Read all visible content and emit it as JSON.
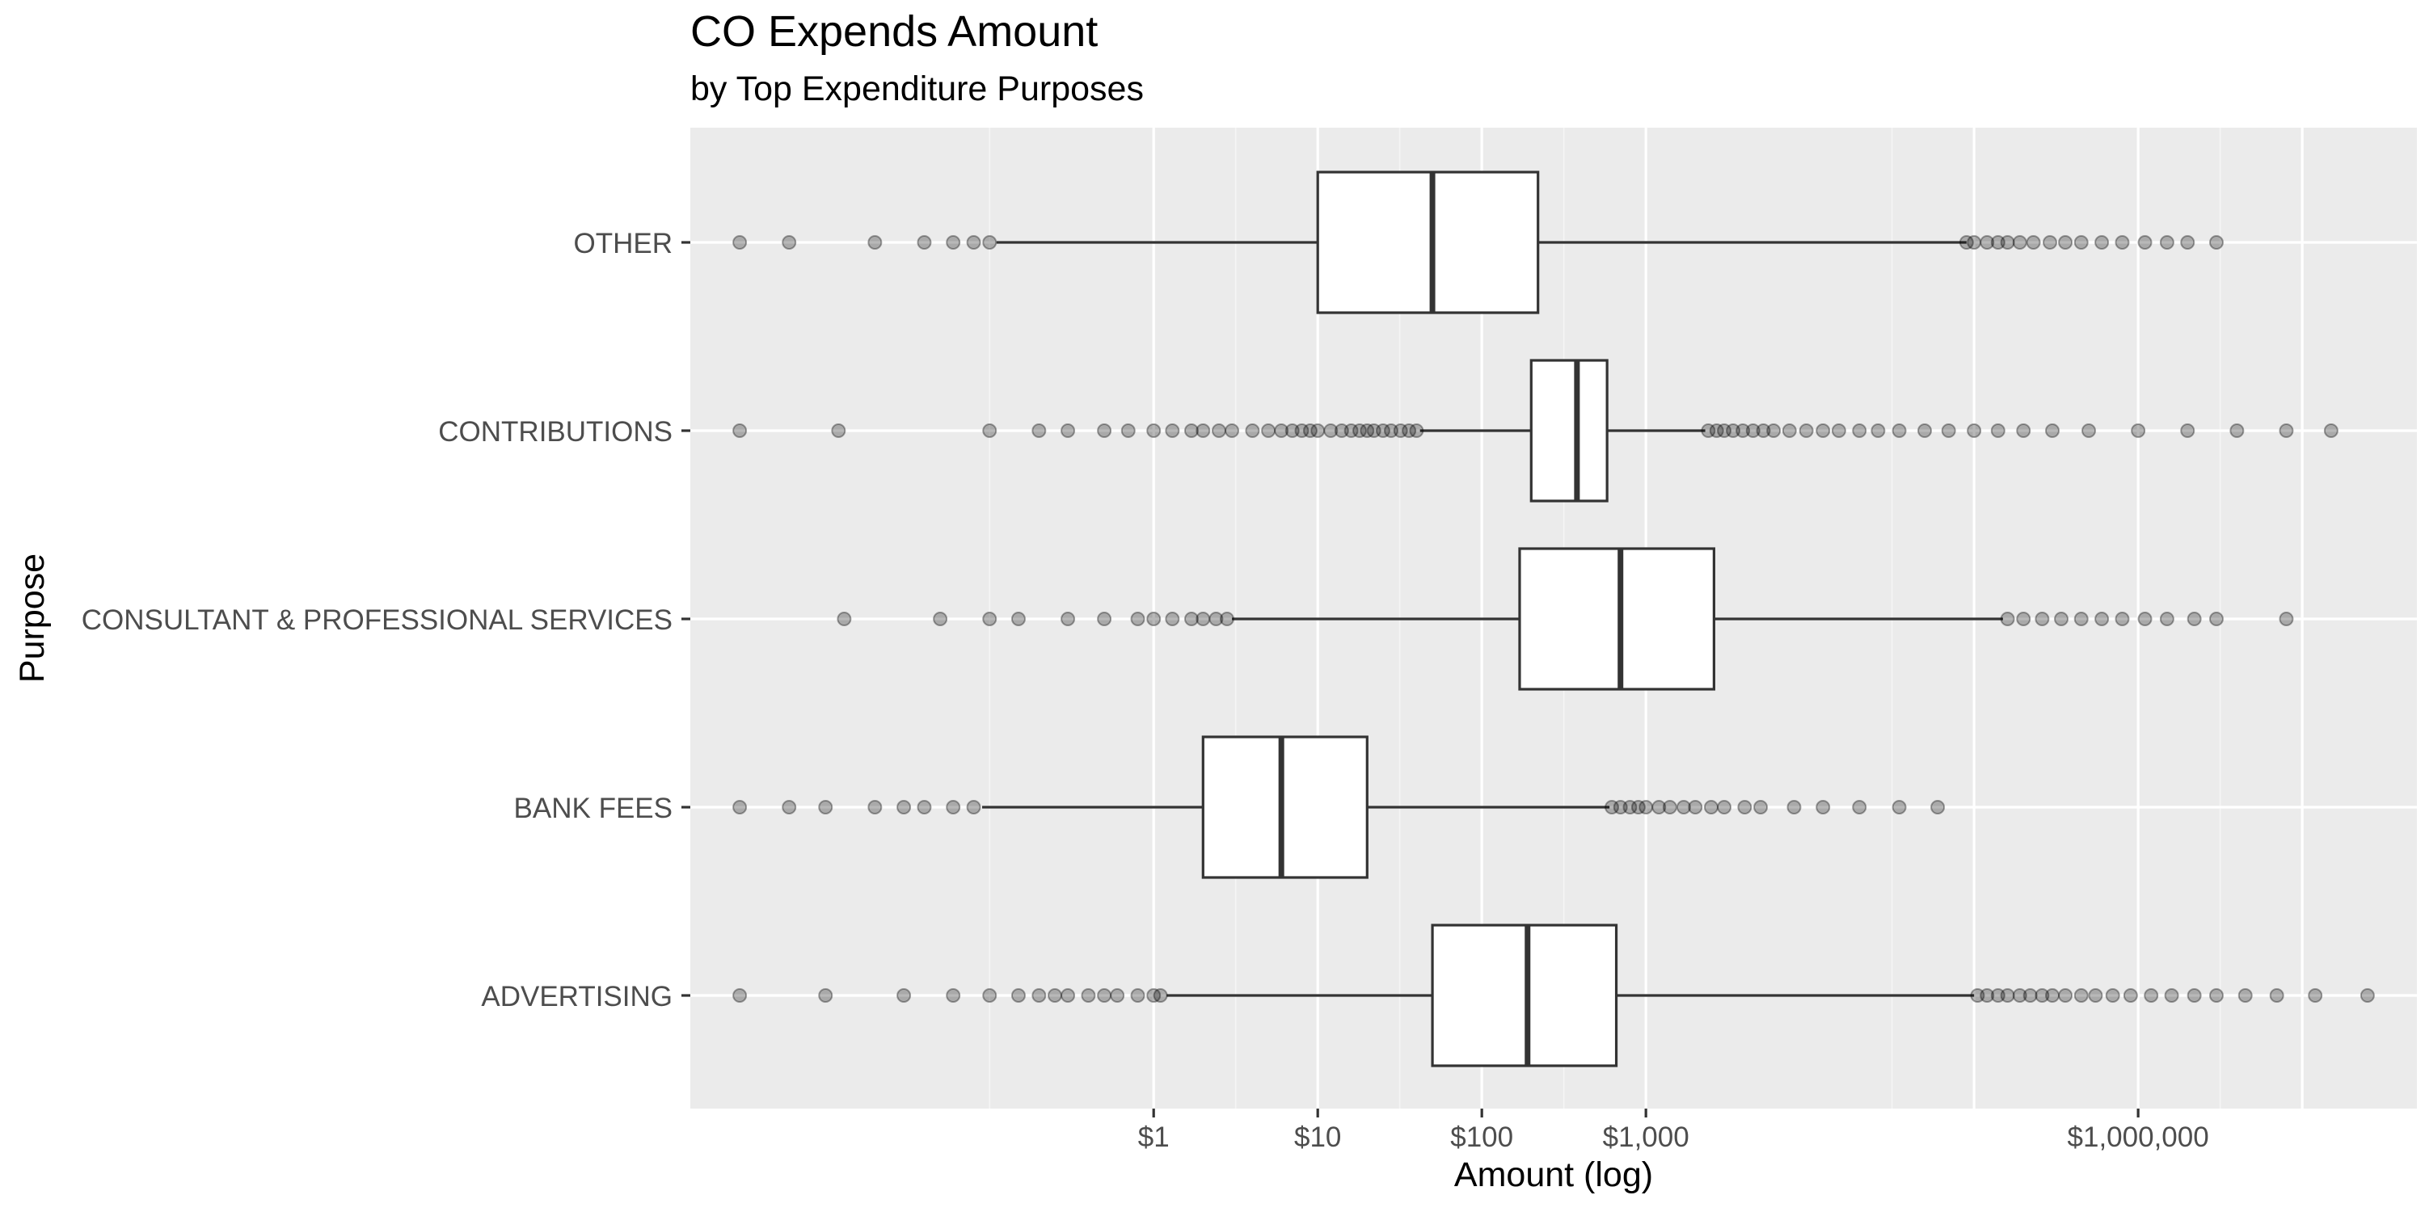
{
  "chart_data": {
    "type": "boxplot",
    "orientation": "horizontal",
    "title": "CO Expends Amount",
    "subtitle": "by Top Expenditure Purposes",
    "xlabel": "Amount (log)",
    "ylabel": "Purpose",
    "x_scale": "log10",
    "xlim": [
      0.0015,
      50000000
    ],
    "x_ticks": [
      {
        "value": 1,
        "label": "$1"
      },
      {
        "value": 10,
        "label": "$10"
      },
      {
        "value": 100,
        "label": "$100"
      },
      {
        "value": 1000,
        "label": "$1,000"
      },
      {
        "value": 1000000,
        "label": "$1,000,000"
      }
    ],
    "x_minor_gridlines": [
      0.1,
      3.16,
      31.6,
      316,
      31600,
      3160000
    ],
    "x_major_gridlines": [
      1,
      10,
      100,
      1000,
      100000,
      1000000,
      10000000
    ],
    "grid": true,
    "legend": "none",
    "categories": [
      "OTHER",
      "CONTRIBUTIONS",
      "CONSULTANT & PROFESSIONAL SERVICES",
      "BANK FEES",
      "ADVERTISING"
    ],
    "boxes": [
      {
        "category": "OTHER",
        "whisker_low": 0.11,
        "q1": 10,
        "median": 50,
        "q3": 220,
        "whisker_high": 90000,
        "outliers_low": [
          0.003,
          0.006,
          0.02,
          0.04,
          0.06,
          0.08,
          0.1
        ],
        "outliers_high": [
          90000,
          100000,
          120000,
          140000,
          160000,
          190000,
          230000,
          290000,
          360000,
          450000,
          600000,
          800000,
          1100000,
          1500000,
          2000000,
          3000000
        ]
      },
      {
        "category": "CONTRIBUTIONS",
        "whisker_low": 42,
        "q1": 200,
        "median": 380,
        "q3": 580,
        "whisker_high": 2300,
        "outliers_low": [
          0.003,
          0.012,
          0.1,
          0.2,
          0.3,
          0.5,
          0.7,
          1,
          1.3,
          1.7,
          2,
          2.5,
          3,
          4,
          5,
          6,
          7,
          8,
          9,
          10,
          12,
          14,
          16,
          18,
          20,
          22,
          25,
          28,
          32,
          36,
          40
        ],
        "outliers_high": [
          2400,
          2700,
          3000,
          3400,
          3900,
          4500,
          5200,
          6000,
          7500,
          9500,
          12000,
          15000,
          20000,
          26000,
          35000,
          50000,
          70000,
          100000,
          140000,
          200000,
          300000,
          500000,
          1000000,
          2000000,
          4000000,
          8000000,
          15000000
        ]
      },
      {
        "category": "CONSULTANT & PROFESSIONAL SERVICES",
        "whisker_low": 3,
        "q1": 170,
        "median": 700,
        "q3": 2600,
        "whisker_high": 150000,
        "outliers_low": [
          0.013,
          0.05,
          0.1,
          0.15,
          0.3,
          0.5,
          0.8,
          1,
          1.3,
          1.7,
          2,
          2.4,
          2.8
        ],
        "outliers_high": [
          160000,
          200000,
          260000,
          340000,
          450000,
          600000,
          800000,
          1100000,
          1500000,
          2200000,
          3000000,
          8000000
        ]
      },
      {
        "category": "BANK FEES",
        "whisker_low": 0.09,
        "q1": 2,
        "median": 6,
        "q3": 20,
        "whisker_high": 600,
        "outliers_low": [
          0.003,
          0.006,
          0.01,
          0.02,
          0.03,
          0.04,
          0.06,
          0.08
        ],
        "outliers_high": [
          620,
          700,
          800,
          900,
          1000,
          1200,
          1400,
          1700,
          2000,
          2500,
          3000,
          4000,
          5000,
          8000,
          12000,
          20000,
          35000,
          60000
        ]
      },
      {
        "category": "ADVERTISING",
        "whisker_low": 1.2,
        "q1": 50,
        "median": 190,
        "q3": 660,
        "whisker_high": 100000,
        "outliers_low": [
          0.003,
          0.01,
          0.03,
          0.06,
          0.1,
          0.15,
          0.2,
          0.25,
          0.3,
          0.4,
          0.5,
          0.6,
          0.8,
          1,
          1.1
        ],
        "outliers_high": [
          105000,
          120000,
          140000,
          160000,
          190000,
          220000,
          260000,
          300000,
          360000,
          450000,
          550000,
          700000,
          900000,
          1200000,
          1600000,
          2200000,
          3000000,
          4500000,
          7000000,
          12000000,
          25000000
        ]
      }
    ]
  },
  "colors": {
    "panel_bg": "#ebebeb",
    "grid_major": "#ffffff",
    "grid_minor": "#f5f5f5",
    "box_fill": "#ffffff",
    "box_stroke": "#333333",
    "point": "#000000",
    "tick_text": "#4d4d4d",
    "axis_title": "#000000"
  }
}
